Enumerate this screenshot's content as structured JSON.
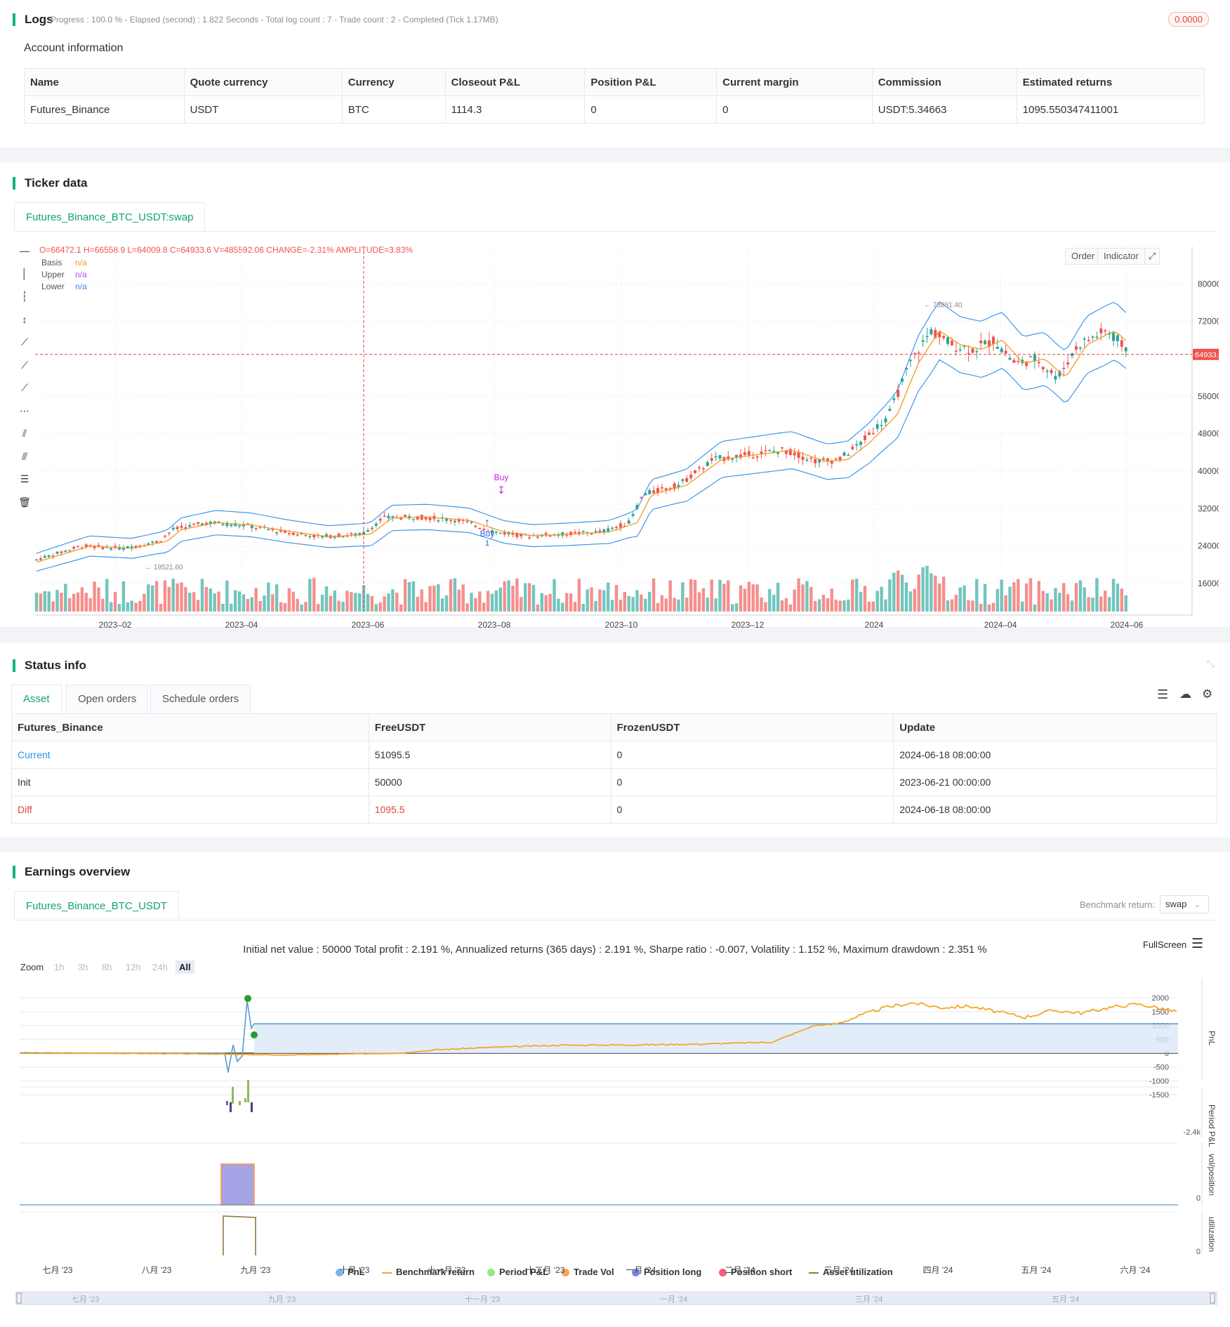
{
  "logs": {
    "title": "Logs",
    "status_line": "Progress : 100.0 % - Elapsed (second) : 1.822  Seconds - Total log count : 7 - Trade count : 2 - Completed (Tick 1.17MB)",
    "badge": "0.0000"
  },
  "account": {
    "title": "Account information",
    "columns": [
      "Name",
      "Quote currency",
      "Currency",
      "Closeout P&L",
      "Position P&L",
      "Current margin",
      "Commission",
      "Estimated returns"
    ],
    "row": [
      "Futures_Binance",
      "USDT",
      "BTC",
      "1114.3",
      "0",
      "0",
      "USDT:5.34663",
      "1095.550347411001"
    ]
  },
  "ticker": {
    "title": "Ticker data",
    "tab": "Futures_Binance_BTC_USDT:swap",
    "ohlc_line": "O=66472.1 H=66558.9 L=64009.8 C=64933.6 V=485592.06 CHANGE=-2.31% AMPLITUDE=3.83%",
    "legend": [
      {
        "name": "Basis",
        "value": "n/a",
        "color": "#f59a23"
      },
      {
        "name": "Upper",
        "value": "n/a",
        "color": "#a64dff"
      },
      {
        "name": "Lower",
        "value": "n/a",
        "color": "#2f8fe8"
      }
    ],
    "buttons": {
      "order": "Order",
      "indicator": "Indicator"
    },
    "price_label": "64933.60",
    "high_label": "73881.40",
    "low_label": "19521.60",
    "buy_label_1": "Buy",
    "buy_label_2": "Buy",
    "buy_count": "1",
    "y_ticks": [
      "80000.00",
      "72000.00",
      "56000.00",
      "48000.00",
      "40000.00",
      "32000.00",
      "24000.00",
      "16000.00"
    ],
    "x_ticks": [
      "2023–02",
      "2023–04",
      "2023–06",
      "2023–08",
      "2023–10",
      "2023–12",
      "2024",
      "2024–04",
      "2024–06"
    ],
    "colors": {
      "up": "#26a69a",
      "down": "#ef5350",
      "basis": "#f59a23",
      "band": "#2f8fe8"
    }
  },
  "status": {
    "title": "Status info",
    "tabs": [
      "Asset",
      "Open orders",
      "Schedule orders"
    ],
    "columns": [
      "Futures_Binance",
      "FreeUSDT",
      "FrozenUSDT",
      "Update"
    ],
    "rows": [
      [
        "Current",
        "51095.5",
        "0",
        "2024-06-18 08:00:00"
      ],
      [
        "Init",
        "50000",
        "0",
        "2023-06-21 00:00:00"
      ],
      [
        "Diff",
        "1095.5",
        "0",
        "2024-06-18 08:00:00"
      ]
    ]
  },
  "earnings": {
    "title": "Earnings overview",
    "tab": "Futures_Binance_BTC_USDT",
    "benchmark_label": "Benchmark return:",
    "benchmark_value": "swap",
    "summary": "Initial net value : 50000 Total profit : 2.191 %, Annualized returns (365 days) : 2.191 %, Sharpe ratio : -0.007, Volatility : 1.152 %, Maximum drawdown : 2.351 %",
    "fullscreen": "FullScreen",
    "zoom_label": "Zoom",
    "zoom_options": [
      "1h",
      "3h",
      "8h",
      "12h",
      "24h",
      "All"
    ],
    "pnl_ticks": [
      "2000",
      "1500",
      "1000",
      "500",
      "0",
      "-500",
      "-1000",
      "-1500"
    ],
    "axis_labels": [
      "PnL",
      "Period P&L",
      "vol/position",
      "utilization"
    ],
    "period_tick": "-2.4k",
    "vol_tick": "0",
    "util_tick": "0",
    "x_ticks": [
      "七月 '23",
      "八月 '23",
      "九月 '23",
      "十月 '23",
      "十一月 '23",
      "十二月 '23",
      "一月 '24",
      "二月 '24",
      "三月 '24",
      "四月 '24",
      "五月 '24",
      "六月 '24"
    ],
    "legend": [
      {
        "name": "PnL",
        "color": "#7cb5ec"
      },
      {
        "name": "Benchmark return",
        "color": "#f5a623"
      },
      {
        "name": "Period P&L",
        "color": "#90ed7d"
      },
      {
        "name": "Trade Vol",
        "color": "#f7a35c"
      },
      {
        "name": "Position long",
        "color": "#8085e9"
      },
      {
        "name": "Position short",
        "color": "#f15c80"
      },
      {
        "name": "Asset utilization",
        "color": "#8d7b3a"
      }
    ],
    "navigator_ticks": [
      "七月 '23",
      "九月 '23",
      "十一月 '23",
      "一月 '24",
      "三月 '24",
      "五月 '24"
    ]
  }
}
